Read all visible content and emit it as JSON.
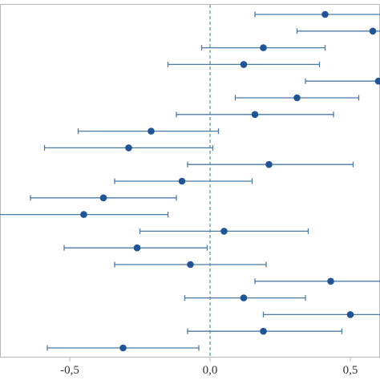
{
  "chart_data": {
    "type": "scatter",
    "subtype": "forest-plot",
    "title": "",
    "xlabel": "",
    "ylabel": "",
    "xlim": [
      -0.76,
      0.6
    ],
    "x_ticks": [
      -0.5,
      0.0,
      0.5
    ],
    "x_tick_labels": [
      "-0,5",
      "0,0",
      "0,5"
    ],
    "reference_line_x": 0.0,
    "reference_line_style": "dashed",
    "grid": false,
    "legend": "none",
    "colors": {
      "point": "#1f5596",
      "whisker": "#4a7bab",
      "reference_line": "#5e9e8f",
      "axis": "#b8b8b8"
    },
    "rows": [
      {
        "estimate": 0.41,
        "lower": 0.16,
        "upper": 0.66
      },
      {
        "estimate": 0.58,
        "lower": 0.31,
        "upper": 0.85
      },
      {
        "estimate": 0.19,
        "lower": -0.03,
        "upper": 0.41
      },
      {
        "estimate": 0.12,
        "lower": -0.15,
        "upper": 0.39
      },
      {
        "estimate": 0.6,
        "lower": 0.34,
        "upper": 0.86
      },
      {
        "estimate": 0.31,
        "lower": 0.09,
        "upper": 0.53
      },
      {
        "estimate": 0.16,
        "lower": -0.12,
        "upper": 0.44
      },
      {
        "estimate": -0.21,
        "lower": -0.47,
        "upper": 0.03
      },
      {
        "estimate": -0.29,
        "lower": -0.59,
        "upper": 0.01
      },
      {
        "estimate": 0.21,
        "lower": -0.08,
        "upper": 0.51
      },
      {
        "estimate": -0.1,
        "lower": -0.34,
        "upper": 0.15
      },
      {
        "estimate": -0.38,
        "lower": -0.64,
        "upper": -0.12
      },
      {
        "estimate": -0.45,
        "lower": -0.76,
        "upper": -0.15
      },
      {
        "estimate": 0.05,
        "lower": -0.25,
        "upper": 0.35
      },
      {
        "estimate": -0.26,
        "lower": -0.52,
        "upper": -0.01
      },
      {
        "estimate": -0.07,
        "lower": -0.34,
        "upper": 0.2
      },
      {
        "estimate": 0.43,
        "lower": 0.16,
        "upper": 0.7
      },
      {
        "estimate": 0.12,
        "lower": -0.09,
        "upper": 0.34
      },
      {
        "estimate": 0.5,
        "lower": 0.19,
        "upper": 0.81
      },
      {
        "estimate": 0.19,
        "lower": -0.08,
        "upper": 0.47
      },
      {
        "estimate": -0.31,
        "lower": -0.58,
        "upper": -0.04
      }
    ]
  }
}
